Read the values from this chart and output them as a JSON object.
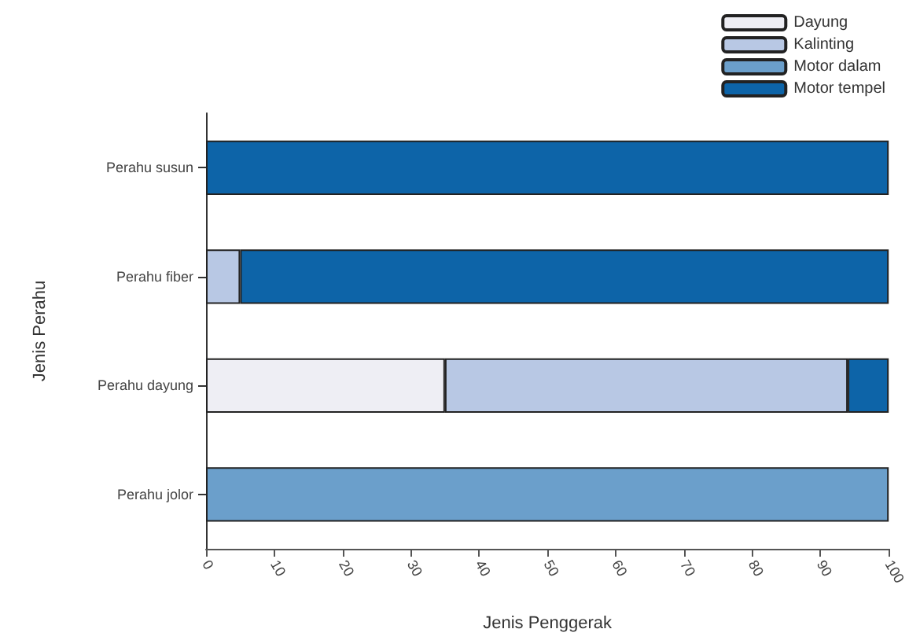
{
  "chart_data": {
    "type": "bar",
    "orientation": "horizontal",
    "stacked": true,
    "xlabel": "Jenis Penggerak",
    "ylabel": "Jenis Perahu",
    "categories": [
      "Perahu susun",
      "Perahu fiber",
      "Perahu dayung",
      "Perahu jolor"
    ],
    "series": [
      {
        "name": "Dayung",
        "color": "#eeeef4",
        "values": [
          null,
          null,
          35,
          null
        ]
      },
      {
        "name": "Kalinting",
        "color": "#b8c8e4",
        "values": [
          null,
          5,
          59,
          null
        ]
      },
      {
        "name": "Motor dalam",
        "color": "#6b9fcb",
        "values": [
          null,
          null,
          null,
          100
        ]
      },
      {
        "name": "Motor tempel",
        "color": "#0d64a8",
        "values": [
          100,
          95,
          6,
          null
        ]
      }
    ],
    "xlim": [
      0,
      100
    ],
    "xticks": [
      0,
      10,
      20,
      30,
      40,
      50,
      60,
      70,
      80,
      90,
      100
    ],
    "grid": false,
    "legend": "top right"
  }
}
